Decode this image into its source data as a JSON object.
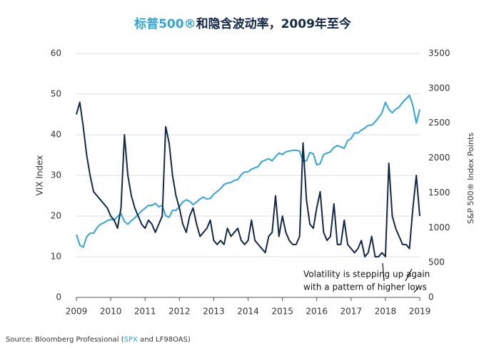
{
  "chart_data": {
    "type": "line",
    "title": {
      "highlight": "标普500®",
      "rest": "和隐含波动率，2009年至今"
    },
    "y_label": "VIX Index",
    "y2_label": "S&P 500® Index Points",
    "annotation": [
      "Volatility is stepping up again",
      "with a pattern of higher lows"
    ],
    "source": {
      "prefix": "Source: Bloomberg Professional (",
      "highlight": "SPX",
      "suffix": " and LF98OAS)"
    },
    "xlim": [
      2009,
      2019
    ],
    "xticks": [
      2009,
      2010,
      2011,
      2012,
      2013,
      2014,
      2015,
      2016,
      2017,
      2018,
      2019
    ],
    "ylim": [
      0,
      60
    ],
    "yticks": [
      0,
      10,
      20,
      30,
      40,
      50,
      60
    ],
    "y2lim": [
      0,
      3500
    ],
    "y2ticks": [
      0,
      500,
      1000,
      1500,
      2000,
      2500,
      3000,
      3500
    ],
    "grid": true,
    "x": [
      2009,
      2009.1,
      2009.2,
      2009.3,
      2009.4,
      2009.5,
      2009.6,
      2009.7,
      2009.8,
      2009.9,
      2010,
      2010.1,
      2010.2,
      2010.3,
      2010.4,
      2010.5,
      2010.6,
      2010.7,
      2010.8,
      2010.9,
      2011,
      2011.1,
      2011.2,
      2011.3,
      2011.4,
      2011.5,
      2011.6,
      2011.7,
      2011.8,
      2011.9,
      2012,
      2012.1,
      2012.2,
      2012.3,
      2012.4,
      2012.5,
      2012.6,
      2012.7,
      2012.8,
      2012.9,
      2013,
      2013.1,
      2013.2,
      2013.3,
      2013.4,
      2013.5,
      2013.6,
      2013.7,
      2013.8,
      2013.9,
      2014,
      2014.1,
      2014.2,
      2014.3,
      2014.4,
      2014.5,
      2014.6,
      2014.7,
      2014.8,
      2014.9,
      2015,
      2015.1,
      2015.2,
      2015.3,
      2015.4,
      2015.5,
      2015.6,
      2015.7,
      2015.8,
      2015.9,
      2016,
      2016.1,
      2016.2,
      2016.3,
      2016.4,
      2016.5,
      2016.6,
      2016.7,
      2016.8,
      2016.9,
      2017,
      2017.1,
      2017.2,
      2017.3,
      2017.4,
      2017.5,
      2017.6,
      2017.7,
      2017.8,
      2017.9,
      2018,
      2018.1,
      2018.2,
      2018.3,
      2018.4,
      2018.5,
      2018.6,
      2018.7,
      2018.8,
      2018.9,
      2019
    ],
    "series": [
      {
        "name": "VIX Index",
        "color": "#13294b",
        "axis": "y",
        "values": [
          45,
          48,
          42,
          35,
          30,
          26,
          25,
          24,
          23,
          22,
          20,
          19,
          17,
          22,
          40,
          30,
          25,
          22,
          20,
          18,
          17,
          19,
          18,
          16,
          18,
          20,
          42,
          38,
          30,
          25,
          22,
          18,
          16,
          20,
          22,
          18,
          15,
          16,
          17,
          19,
          14,
          13,
          14,
          13,
          17,
          15,
          16,
          17,
          14,
          13,
          14,
          19,
          14,
          13,
          12,
          11,
          15,
          16,
          25,
          15,
          20,
          16,
          14,
          13,
          13,
          15,
          38,
          24,
          18,
          17,
          22,
          26,
          16,
          14,
          15,
          23,
          13,
          13,
          19,
          13,
          12,
          11,
          12,
          14,
          10,
          11,
          15,
          10,
          10,
          11,
          10,
          33,
          20,
          17,
          15,
          13,
          13,
          12,
          22,
          30,
          20
        ]
      },
      {
        "name": "S&P 500® Index Points",
        "color": "#2fa4dd",
        "axis": "y2",
        "values": [
          900,
          750,
          720,
          870,
          920,
          920,
          1000,
          1050,
          1070,
          1100,
          1120,
          1110,
          1160,
          1200,
          1090,
          1050,
          1100,
          1140,
          1190,
          1240,
          1280,
          1320,
          1320,
          1350,
          1300,
          1320,
          1170,
          1150,
          1250,
          1250,
          1300,
          1370,
          1400,
          1380,
          1330,
          1370,
          1410,
          1440,
          1410,
          1420,
          1480,
          1520,
          1560,
          1620,
          1640,
          1650,
          1680,
          1690,
          1760,
          1800,
          1800,
          1840,
          1860,
          1880,
          1950,
          1970,
          1990,
          1960,
          2020,
          2070,
          2050,
          2090,
          2100,
          2110,
          2110,
          2100,
          1950,
          1960,
          2080,
          2060,
          1900,
          1920,
          2050,
          2070,
          2090,
          2150,
          2180,
          2160,
          2140,
          2250,
          2280,
          2360,
          2360,
          2400,
          2430,
          2470,
          2470,
          2520,
          2580,
          2650,
          2800,
          2700,
          2650,
          2700,
          2730,
          2800,
          2850,
          2900,
          2750,
          2500,
          2700
        ]
      }
    ]
  }
}
